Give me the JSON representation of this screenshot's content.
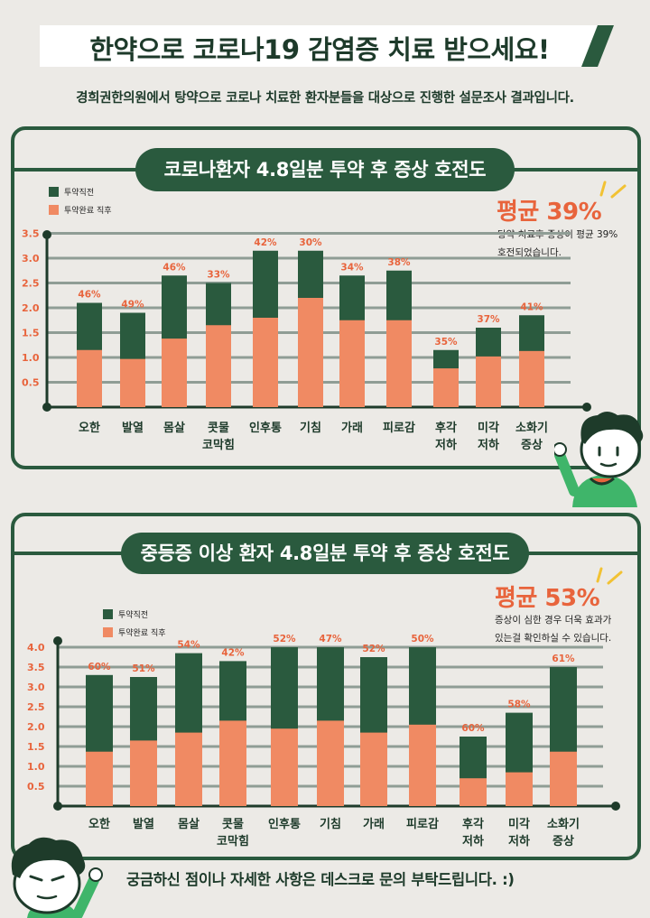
{
  "banner": {
    "title": "한약으로 코로나19 감염증 치료 받으세요!"
  },
  "subtitle": "경희권한의원에서 탕약으로 코로나 치료한 환자분들을 대상으로 진행한 설문조사 결과입니다.",
  "footer": {
    "text": "궁금하신 점이나 자세한 사항은 데스크로 문의 부탁드립니다. :)"
  },
  "colors": {
    "dark_green": "#2a5a3e",
    "salmon": "#f08a63",
    "accent": "#e8643c",
    "background": "#eceae6",
    "grid": "#8f9d95"
  },
  "chart_data": [
    {
      "type": "bar",
      "stacked": true,
      "title": "코로나환자 4.8일분 투약 후 증상 호전도",
      "legend": [
        "투약직전",
        "투약완료 직후"
      ],
      "legend_position": "top-left",
      "average": {
        "label": "평균 39%",
        "desc": [
          "탕약 치료후 증상이 평균 39%",
          "호전되었습니다."
        ]
      },
      "categories": [
        "오한",
        "발열",
        "몸살",
        "콧물\n코막힘",
        "인후통",
        "기침",
        "가래",
        "피로감",
        "후각\n저하",
        "미각\n저하",
        "소화기\n증상"
      ],
      "before": [
        2.1,
        1.9,
        2.65,
        2.5,
        3.15,
        3.15,
        2.65,
        2.75,
        1.15,
        1.6,
        1.85
      ],
      "after": [
        1.15,
        0.97,
        1.38,
        1.65,
        1.8,
        2.2,
        1.75,
        1.75,
        0.78,
        1.02,
        1.13
      ],
      "labels": [
        "46%",
        "49%",
        "46%",
        "33%",
        "42%",
        "30%",
        "34%",
        "38%",
        "35%",
        "37%",
        "41%"
      ],
      "yticks": [
        "0.5",
        "1.0",
        "1.5",
        "2.0",
        "2.5",
        "3.0",
        "3.5"
      ],
      "ylim": [
        0,
        3.5
      ],
      "grid": true
    },
    {
      "type": "bar",
      "stacked": true,
      "title": "중등증 이상 환자 4.8일분 투약 후 증상 호전도",
      "legend": [
        "투약직전",
        "투약완료 직후"
      ],
      "legend_position": "top-left",
      "average": {
        "label": "평균 53%",
        "desc": [
          "증상이 심한 경우 더욱 효과가",
          "있는걸 확인하실 수 있습니다."
        ]
      },
      "categories": [
        "오한",
        "발열",
        "몸살",
        "콧물\n코막힘",
        "인후통",
        "기침",
        "가래",
        "피로감",
        "후각\n저하",
        "미각\n저하",
        "소화기\n증상"
      ],
      "before": [
        3.3,
        3.25,
        3.85,
        3.65,
        4.0,
        4.0,
        3.75,
        4.0,
        1.75,
        2.35,
        3.5
      ],
      "after": [
        1.37,
        1.65,
        1.85,
        2.15,
        1.95,
        2.15,
        1.85,
        2.05,
        0.7,
        0.85,
        1.37
      ],
      "labels": [
        "60%",
        "51%",
        "54%",
        "42%",
        "52%",
        "47%",
        "52%",
        "50%",
        "60%",
        "58%",
        "61%"
      ],
      "yticks": [
        "0.5",
        "1.0",
        "1.5",
        "2.0",
        "2.5",
        "3.0",
        "3.5",
        "4.0"
      ],
      "ylim": [
        0,
        4.0
      ],
      "grid": true
    }
  ]
}
